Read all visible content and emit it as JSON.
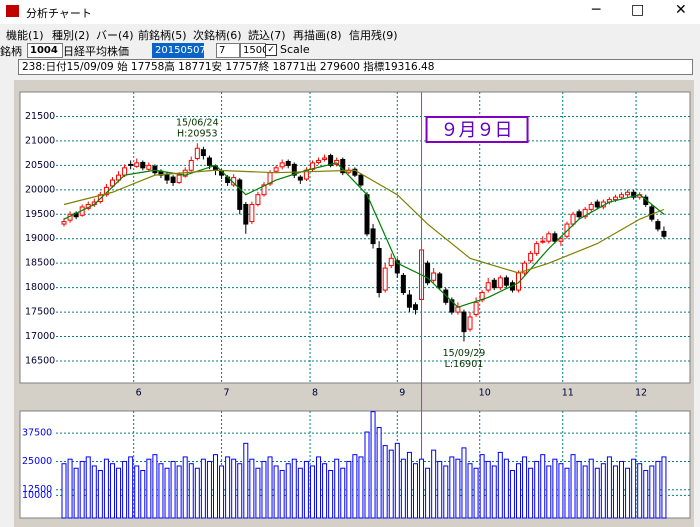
{
  "window": {
    "title": "分析チャート"
  },
  "menu": [
    "機能(1)",
    "種別(2)",
    "バー(4)",
    "前銘柄(5)",
    "次銘柄(6)",
    "読込(7)",
    "再描画(8)",
    "信用残(9)"
  ],
  "toolbar": {
    "label": "銘柄",
    "code": "1004",
    "name": "日経平均株価",
    "date": "20150507",
    "period": "7",
    "count": "1500",
    "scale": "Scale"
  },
  "info": "238:日付15/09/09 始 17758高 18771安 17757終 18771出 279600 指標19316.48",
  "chart_data": [
    {
      "type": "candlestick",
      "ylim": [
        16050,
        22000
      ],
      "yticks": [
        16500,
        17000,
        17500,
        18000,
        18500,
        19000,
        19500,
        20000,
        20500,
        21000,
        21500
      ],
      "xticks": [
        {
          "value": 11.5,
          "label": "6"
        },
        {
          "value": 26,
          "label": "7"
        },
        {
          "value": 40.6,
          "label": "8"
        },
        {
          "value": 55,
          "label": "9"
        },
        {
          "value": 68.6,
          "label": "10"
        },
        {
          "value": 82.3,
          "label": "11"
        },
        {
          "value": 94.4,
          "label": "12"
        }
      ],
      "grid": true,
      "up_color": "#ff0000",
      "down_color": "#000000",
      "grid_color": "#008080",
      "cursor": 59,
      "cursor_color": "#ff00ff",
      "annotations": [
        {
          "text": "15/06/24",
          "x": 22,
          "y": 20953,
          "pos": "above2"
        },
        {
          "text": "H:20953",
          "x": 22,
          "y": 20953,
          "pos": "above1"
        },
        {
          "text": "15/09/29",
          "x": 66,
          "y": 16901,
          "pos": "below1"
        },
        {
          "text": "L:16901",
          "x": 66,
          "y": 16901,
          "pos": "below2"
        }
      ],
      "callout": "９月９日",
      "candles": [
        [
          19300,
          19420,
          19250,
          19350
        ],
        [
          19380,
          19560,
          19330,
          19500
        ],
        [
          19520,
          19560,
          19400,
          19450
        ],
        [
          19480,
          19700,
          19450,
          19650
        ],
        [
          19620,
          19760,
          19580,
          19700
        ],
        [
          19700,
          19820,
          19650,
          19750
        ],
        [
          19760,
          19960,
          19720,
          19900
        ],
        [
          19900,
          20120,
          19860,
          20050
        ],
        [
          20080,
          20260,
          20040,
          20200
        ],
        [
          20200,
          20380,
          20150,
          20300
        ],
        [
          20300,
          20520,
          20260,
          20450
        ],
        [
          20520,
          20600,
          20420,
          20500
        ],
        [
          20480,
          20640,
          20450,
          20550
        ],
        [
          20560,
          20600,
          20400,
          20450
        ],
        [
          20420,
          20560,
          20380,
          20500
        ],
        [
          20480,
          20520,
          20300,
          20350
        ],
        [
          20380,
          20420,
          20240,
          20300
        ],
        [
          20320,
          20360,
          20120,
          20200
        ],
        [
          20260,
          20300,
          20080,
          20150
        ],
        [
          20150,
          20360,
          20120,
          20300
        ],
        [
          20280,
          20460,
          20250,
          20400
        ],
        [
          20400,
          20680,
          20380,
          20600
        ],
        [
          20640,
          20953,
          20600,
          20850
        ],
        [
          20820,
          20880,
          20620,
          20700
        ],
        [
          20650,
          20700,
          20420,
          20500
        ],
        [
          20480,
          20520,
          20300,
          20400
        ],
        [
          20380,
          20420,
          20220,
          20300
        ],
        [
          20260,
          20300,
          20080,
          20150
        ],
        [
          20100,
          20320,
          20060,
          20250
        ],
        [
          20200,
          20240,
          19500,
          19600
        ],
        [
          19700,
          19750,
          19100,
          19300
        ],
        [
          19350,
          19760,
          19300,
          19700
        ],
        [
          19700,
          19960,
          19660,
          19900
        ],
        [
          19900,
          20160,
          19860,
          20100
        ],
        [
          20120,
          20400,
          20080,
          20350
        ],
        [
          20380,
          20500,
          20340,
          20450
        ],
        [
          20470,
          20620,
          20420,
          20550
        ],
        [
          20580,
          20620,
          20440,
          20500
        ],
        [
          20520,
          20560,
          20240,
          20300
        ],
        [
          20260,
          20300,
          20120,
          20200
        ],
        [
          20220,
          20460,
          20180,
          20400
        ],
        [
          20420,
          20600,
          20380,
          20550
        ],
        [
          20560,
          20660,
          20520,
          20600
        ],
        [
          20620,
          20720,
          20580,
          20650
        ],
        [
          20700,
          20740,
          20460,
          20500
        ],
        [
          20520,
          20660,
          20480,
          20600
        ],
        [
          20620,
          20660,
          20300,
          20350
        ],
        [
          20360,
          20460,
          20320,
          20400
        ],
        [
          20420,
          20460,
          20260,
          20300
        ],
        [
          20300,
          20340,
          20060,
          20100
        ],
        [
          19900,
          19950,
          19050,
          19100
        ],
        [
          19200,
          19300,
          18800,
          18900
        ],
        [
          18800,
          18950,
          17800,
          17900
        ],
        [
          17950,
          18500,
          17900,
          18400
        ],
        [
          18450,
          18700,
          18400,
          18600
        ],
        [
          18550,
          18600,
          18200,
          18300
        ],
        [
          18250,
          18300,
          17850,
          17900
        ],
        [
          17850,
          17950,
          17500,
          17600
        ],
        [
          17650,
          17700,
          17450,
          17550
        ],
        [
          17758,
          18771,
          17757,
          18771
        ],
        [
          18500,
          18550,
          18050,
          18100
        ],
        [
          18150,
          18400,
          18100,
          18300
        ],
        [
          18280,
          18320,
          17950,
          18000
        ],
        [
          17950,
          18000,
          17650,
          17700
        ],
        [
          17750,
          17800,
          17450,
          17500
        ],
        [
          17500,
          17700,
          17450,
          17600
        ],
        [
          17500,
          17550,
          16901,
          17100
        ],
        [
          17150,
          17500,
          17100,
          17400
        ],
        [
          17450,
          17800,
          17400,
          17700
        ],
        [
          17750,
          17950,
          17700,
          17900
        ],
        [
          17950,
          18200,
          17900,
          18100
        ],
        [
          18150,
          18200,
          17950,
          18000
        ],
        [
          18000,
          18250,
          17950,
          18200
        ],
        [
          18200,
          18250,
          18000,
          18050
        ],
        [
          18100,
          18150,
          17900,
          17950
        ],
        [
          17950,
          18350,
          17900,
          18300
        ],
        [
          18300,
          18550,
          18250,
          18500
        ],
        [
          18550,
          18750,
          18500,
          18700
        ],
        [
          18700,
          18950,
          18650,
          18900
        ],
        [
          18950,
          19050,
          18900,
          18950
        ],
        [
          18950,
          19150,
          18900,
          19100
        ],
        [
          19100,
          19150,
          18900,
          18950
        ],
        [
          18950,
          19050,
          18850,
          19000
        ],
        [
          19050,
          19350,
          19000,
          19300
        ],
        [
          19300,
          19550,
          19250,
          19500
        ],
        [
          19550,
          19600,
          19400,
          19450
        ],
        [
          19450,
          19650,
          19400,
          19600
        ],
        [
          19600,
          19750,
          19550,
          19700
        ],
        [
          19750,
          19800,
          19600,
          19650
        ],
        [
          19650,
          19800,
          19600,
          19750
        ],
        [
          19750,
          19850,
          19700,
          19800
        ],
        [
          19800,
          19900,
          19750,
          19850
        ],
        [
          19850,
          19950,
          19800,
          19900
        ],
        [
          19900,
          20000,
          19850,
          19950
        ],
        [
          19950,
          20000,
          19800,
          19850
        ],
        [
          19850,
          19950,
          19800,
          19900
        ],
        [
          19850,
          19900,
          19650,
          19700
        ],
        [
          19650,
          19700,
          19350,
          19400
        ],
        [
          19350,
          19400,
          19150,
          19200
        ],
        [
          19150,
          19250,
          19000,
          19050
        ]
      ],
      "ma": [
        {
          "color": "#008000",
          "x": [
            0,
            5,
            10,
            15,
            20,
            25,
            30,
            35,
            40,
            45,
            50,
            55,
            60,
            65,
            70,
            75,
            80,
            85,
            90,
            95,
            99
          ],
          "values": [
            19400,
            19700,
            20300,
            20400,
            20300,
            20500,
            19900,
            20200,
            20400,
            20550,
            19900,
            18500,
            18200,
            17600,
            17800,
            18100,
            18800,
            19400,
            19750,
            19900,
            19500
          ]
        },
        {
          "color": "#808000",
          "x": [
            0,
            8,
            15,
            25,
            35,
            48,
            55,
            60,
            67,
            75,
            80,
            88,
            95,
            99
          ],
          "values": [
            19700,
            19950,
            20300,
            20400,
            20350,
            20400,
            19900,
            19300,
            18600,
            18300,
            18500,
            18900,
            19400,
            19600
          ]
        }
      ]
    },
    {
      "type": "bar",
      "ylim": [
        0,
        47300
      ],
      "yticks": [
        10000,
        12500,
        25000,
        37500
      ],
      "color": "#0000ff",
      "label_color": "#0000ff",
      "grid": true,
      "values": [
        24000,
        26000,
        22000,
        25000,
        27000,
        23000,
        21000,
        26000,
        24000,
        22000,
        25000,
        27000,
        23000,
        21000,
        26000,
        28000,
        24000,
        22000,
        25000,
        23000,
        27000,
        24000,
        22000,
        26000,
        25000,
        28000,
        23000,
        27000,
        26000,
        24000,
        33000,
        26000,
        22000,
        25000,
        27000,
        23000,
        21000,
        24000,
        26000,
        22000,
        25000,
        23000,
        27000,
        24000,
        21000,
        26000,
        22000,
        25000,
        28000,
        27000,
        38000,
        47000,
        40000,
        32000,
        30000,
        33000,
        26000,
        29000,
        24000,
        26000,
        22000,
        30000,
        25000,
        23000,
        27000,
        26000,
        31000,
        24000,
        22000,
        28000,
        25000,
        23000,
        29000,
        26000,
        21000,
        24000,
        27000,
        22000,
        25000,
        28000,
        23000,
        26000,
        24000,
        22000,
        28000,
        25000,
        23000,
        26000,
        22000,
        24000,
        27000,
        23000,
        25000,
        22000,
        26000,
        24000,
        21000,
        23000,
        25000,
        27000
      ]
    }
  ]
}
